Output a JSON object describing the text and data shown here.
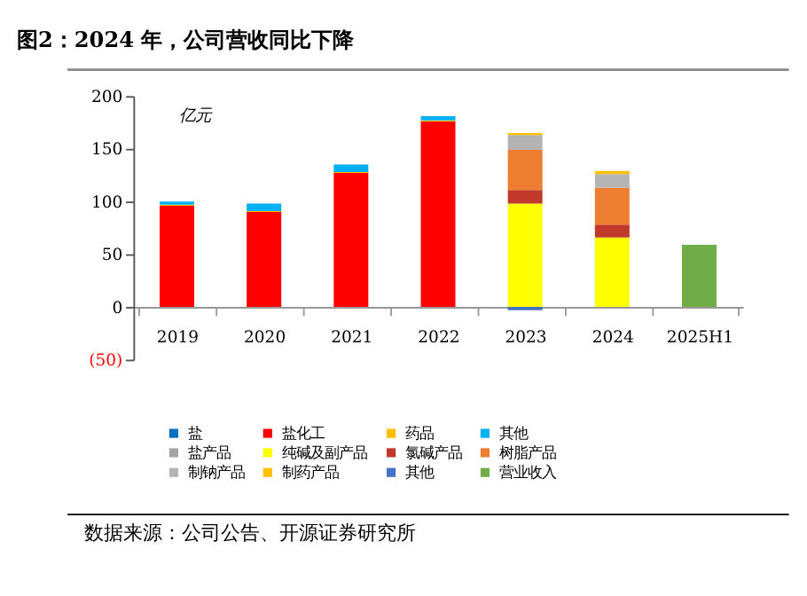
{
  "chart_data": {
    "type": "bar",
    "stacked": true,
    "title": "图2：2024 年，公司营收同比下降",
    "categories": [
      "2019",
      "2020",
      "2021",
      "2022",
      "2023",
      "2024",
      "2025H1"
    ],
    "ylim": [
      -50,
      200
    ],
    "yticks": [
      {
        "value": -50,
        "label": "(50)"
      },
      0,
      50,
      100,
      150,
      200
    ],
    "grid": false,
    "legend": "bottom",
    "annotations": [
      "亿元",
      "数据来源：公司公告、开源证券研究所"
    ],
    "series": [
      {
        "name": "盐",
        "color": "#0070c0",
        "values": [
          null,
          null,
          null,
          null,
          null,
          null,
          null
        ]
      },
      {
        "name": "盐化工",
        "color": "#ff0000",
        "values": [
          96,
          90,
          127,
          176,
          null,
          null,
          null
        ]
      },
      {
        "name": "药品",
        "color": "#ffc000",
        "values": [
          1,
          1,
          1,
          1,
          null,
          null,
          null
        ]
      },
      {
        "name": "其他",
        "color": "#00b0f0",
        "values": [
          3,
          7,
          7,
          4,
          null,
          null,
          null
        ]
      },
      {
        "name": "盐产品",
        "color": "#a5a5a5",
        "values": [
          null,
          null,
          null,
          null,
          null,
          null,
          null
        ]
      },
      {
        "name": "纯碱及副产品",
        "color": "#ffff00",
        "values": [
          null,
          null,
          null,
          null,
          98,
          66,
          null
        ]
      },
      {
        "name": "氯碱产品",
        "color": "#c0392b",
        "values": [
          null,
          null,
          null,
          null,
          13,
          12,
          null
        ]
      },
      {
        "name": "树脂产品",
        "color": "#ed7d31",
        "values": [
          null,
          null,
          null,
          null,
          38,
          35,
          null
        ]
      },
      {
        "name": "制钠产品",
        "color": "#b4b4b4",
        "values": [
          null,
          null,
          null,
          null,
          14,
          13,
          null
        ]
      },
      {
        "name": "制药产品",
        "color": "#ffc000",
        "values": [
          null,
          null,
          null,
          null,
          2,
          3,
          null
        ]
      },
      {
        "name": "其他",
        "color": "#4472c4",
        "values": [
          null,
          null,
          null,
          null,
          -3,
          null,
          null
        ]
      },
      {
        "name": "营业收入",
        "color": "#70ad47",
        "values": [
          null,
          null,
          null,
          null,
          null,
          null,
          59
        ]
      }
    ]
  }
}
